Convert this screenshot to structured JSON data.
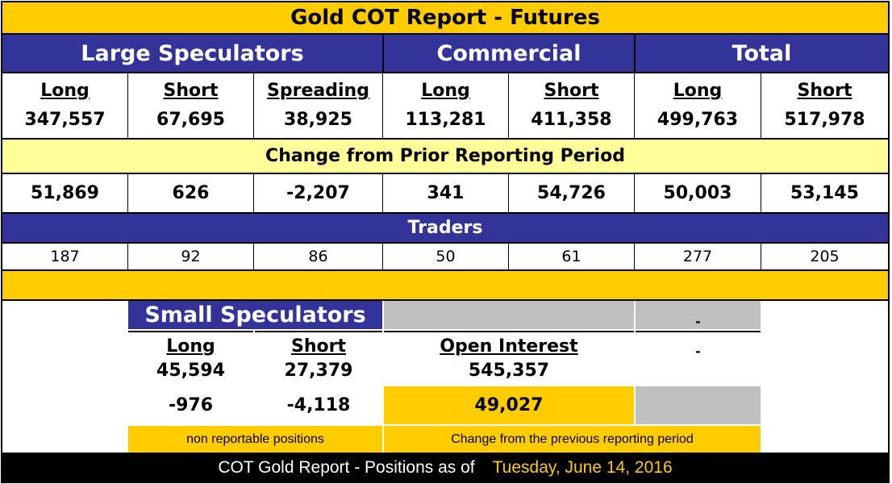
{
  "title": "Gold COT Report - Futures",
  "groups": {
    "large": "Large Speculators",
    "commercial": "Commercial",
    "total": "Total"
  },
  "columns": [
    {
      "label": "Long",
      "value": "347,557",
      "change": "51,869",
      "traders": "187"
    },
    {
      "label": "Short",
      "value": "67,695",
      "change": "626",
      "traders": "92"
    },
    {
      "label": "Spreading",
      "value": "38,925",
      "change": "-2,207",
      "traders": "86"
    },
    {
      "label": "Long",
      "value": "113,281",
      "change": "341",
      "traders": "50"
    },
    {
      "label": "Short",
      "value": "411,358",
      "change": "54,726",
      "traders": "61"
    },
    {
      "label": "Long",
      "value": "499,763",
      "change": "50,003",
      "traders": "277"
    },
    {
      "label": "Short",
      "value": "517,978",
      "change": "53,145",
      "traders": "205"
    }
  ],
  "change_header": "Change from Prior Reporting Period",
  "traders_header": "Traders",
  "small": {
    "title": "Small Speculators",
    "long_label": "Long",
    "long_value": "45,594",
    "long_change": "-976",
    "short_label": "Short",
    "short_value": "27,379",
    "short_change": "-4,118",
    "oi_label": "Open Interest",
    "oi_value": "545,357",
    "oi_change": "49,027",
    "dash1": "-",
    "dash2": "-",
    "note_left": "non reportable positions",
    "note_right": "Change from the previous reporting period"
  },
  "footer": {
    "text": "COT Gold Report - Positions as of",
    "date": "Tuesday, June 14, 2016"
  }
}
